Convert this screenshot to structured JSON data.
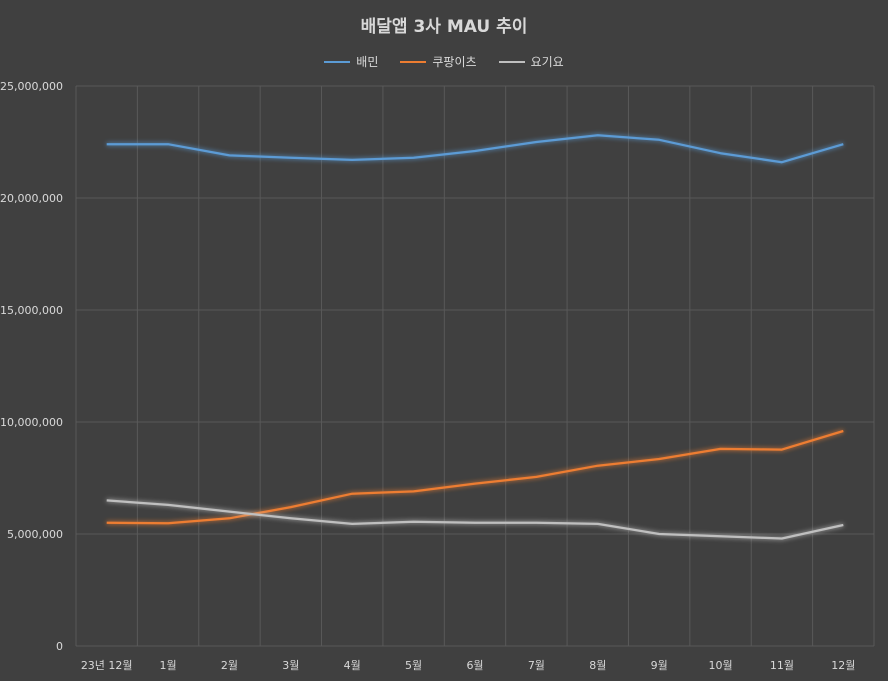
{
  "chart_data": {
    "type": "line",
    "title": "배달앱 3사 MAU 추이",
    "xlabel": "",
    "ylabel": "",
    "categories": [
      "23년 12월",
      "1월",
      "2월",
      "3월",
      "4월",
      "5월",
      "6월",
      "7월",
      "8월",
      "9월",
      "10월",
      "11월",
      "12월"
    ],
    "ylim": [
      0,
      25000000
    ],
    "yticks": [
      "0",
      "5,000,000",
      "10,000,000",
      "15,000,000",
      "20,000,000",
      "25,000,000"
    ],
    "grid": true,
    "legend_position": "top",
    "series": [
      {
        "name": "배민",
        "color": "#5b9bd5",
        "values": [
          22400000,
          22400000,
          21900000,
          21800000,
          21700000,
          21800000,
          22100000,
          22500000,
          22800000,
          22600000,
          22000000,
          21600000,
          22400000
        ]
      },
      {
        "name": "쿠팡이츠",
        "color": "#ed7d31",
        "values": [
          5500000,
          5480000,
          5700000,
          6200000,
          6800000,
          6900000,
          7250000,
          7550000,
          8050000,
          8350000,
          8800000,
          8770000,
          9600000
        ]
      },
      {
        "name": "요기요",
        "color": "#bfbfbf",
        "values": [
          6500000,
          6300000,
          6000000,
          5700000,
          5450000,
          5550000,
          5500000,
          5500000,
          5450000,
          5000000,
          4900000,
          4800000,
          5400000
        ]
      }
    ]
  }
}
